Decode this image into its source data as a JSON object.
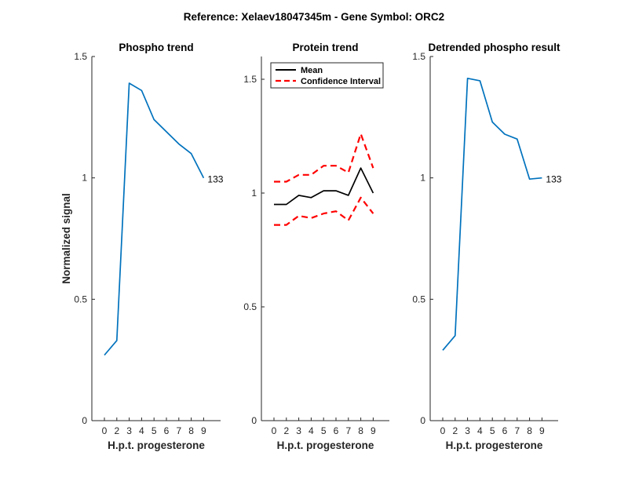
{
  "figure": {
    "suptitle": "Reference:  Xelaev18047345m - Gene Symbol:  ORC2"
  },
  "chart_data": [
    {
      "type": "line",
      "title": "Phospho trend",
      "xlabel": "H.p.t. progesterone",
      "ylabel": "Normalized signal",
      "categories": [
        "0",
        "2",
        "3",
        "4",
        "5",
        "6",
        "7",
        "8",
        "9"
      ],
      "ylim": [
        0,
        1.5
      ],
      "yticks": [
        "0",
        "0.5",
        "1",
        "1.5"
      ],
      "series": [
        {
          "values": [
            0.27,
            0.33,
            1.39,
            1.36,
            1.24,
            1.19,
            1.14,
            1.1,
            1.0
          ],
          "color": "#0072BD",
          "style": "solid",
          "end_label": "133"
        }
      ]
    },
    {
      "type": "line",
      "title": "Protein trend",
      "xlabel": "H.p.t. progesterone",
      "ylabel": "",
      "categories": [
        "0",
        "2",
        "3",
        "4",
        "5",
        "6",
        "7",
        "8",
        "9"
      ],
      "ylim": [
        0,
        1.6
      ],
      "yticks": [
        "0",
        "0.5",
        "1",
        "1.5"
      ],
      "legend": {
        "position": "top-left",
        "entries": [
          "Mean",
          "Confidence Interval"
        ]
      },
      "series": [
        {
          "name": "Mean",
          "values": [
            0.95,
            0.95,
            0.99,
            0.98,
            1.01,
            1.01,
            0.99,
            1.11,
            1.0
          ],
          "color": "#000000",
          "style": "solid"
        },
        {
          "name": "Confidence Interval",
          "values": [
            1.05,
            1.05,
            1.08,
            1.08,
            1.12,
            1.12,
            1.09,
            1.26,
            1.11
          ],
          "color": "#FF0000",
          "style": "dashed"
        },
        {
          "name": "Confidence Interval",
          "values": [
            0.86,
            0.86,
            0.9,
            0.89,
            0.91,
            0.92,
            0.88,
            0.98,
            0.91
          ],
          "color": "#FF0000",
          "style": "dashed"
        }
      ]
    },
    {
      "type": "line",
      "title": "Detrended phospho result",
      "xlabel": "H.p.t. progesterone",
      "ylabel": "",
      "categories": [
        "0",
        "2",
        "3",
        "4",
        "5",
        "6",
        "7",
        "8",
        "9"
      ],
      "ylim": [
        0,
        1.5
      ],
      "yticks": [
        "0",
        "0.5",
        "1",
        "1.5"
      ],
      "series": [
        {
          "values": [
            0.29,
            0.35,
            1.41,
            1.4,
            1.23,
            1.18,
            1.16,
            0.995,
            1.0
          ],
          "color": "#0072BD",
          "style": "solid",
          "end_label": "133"
        }
      ]
    }
  ]
}
